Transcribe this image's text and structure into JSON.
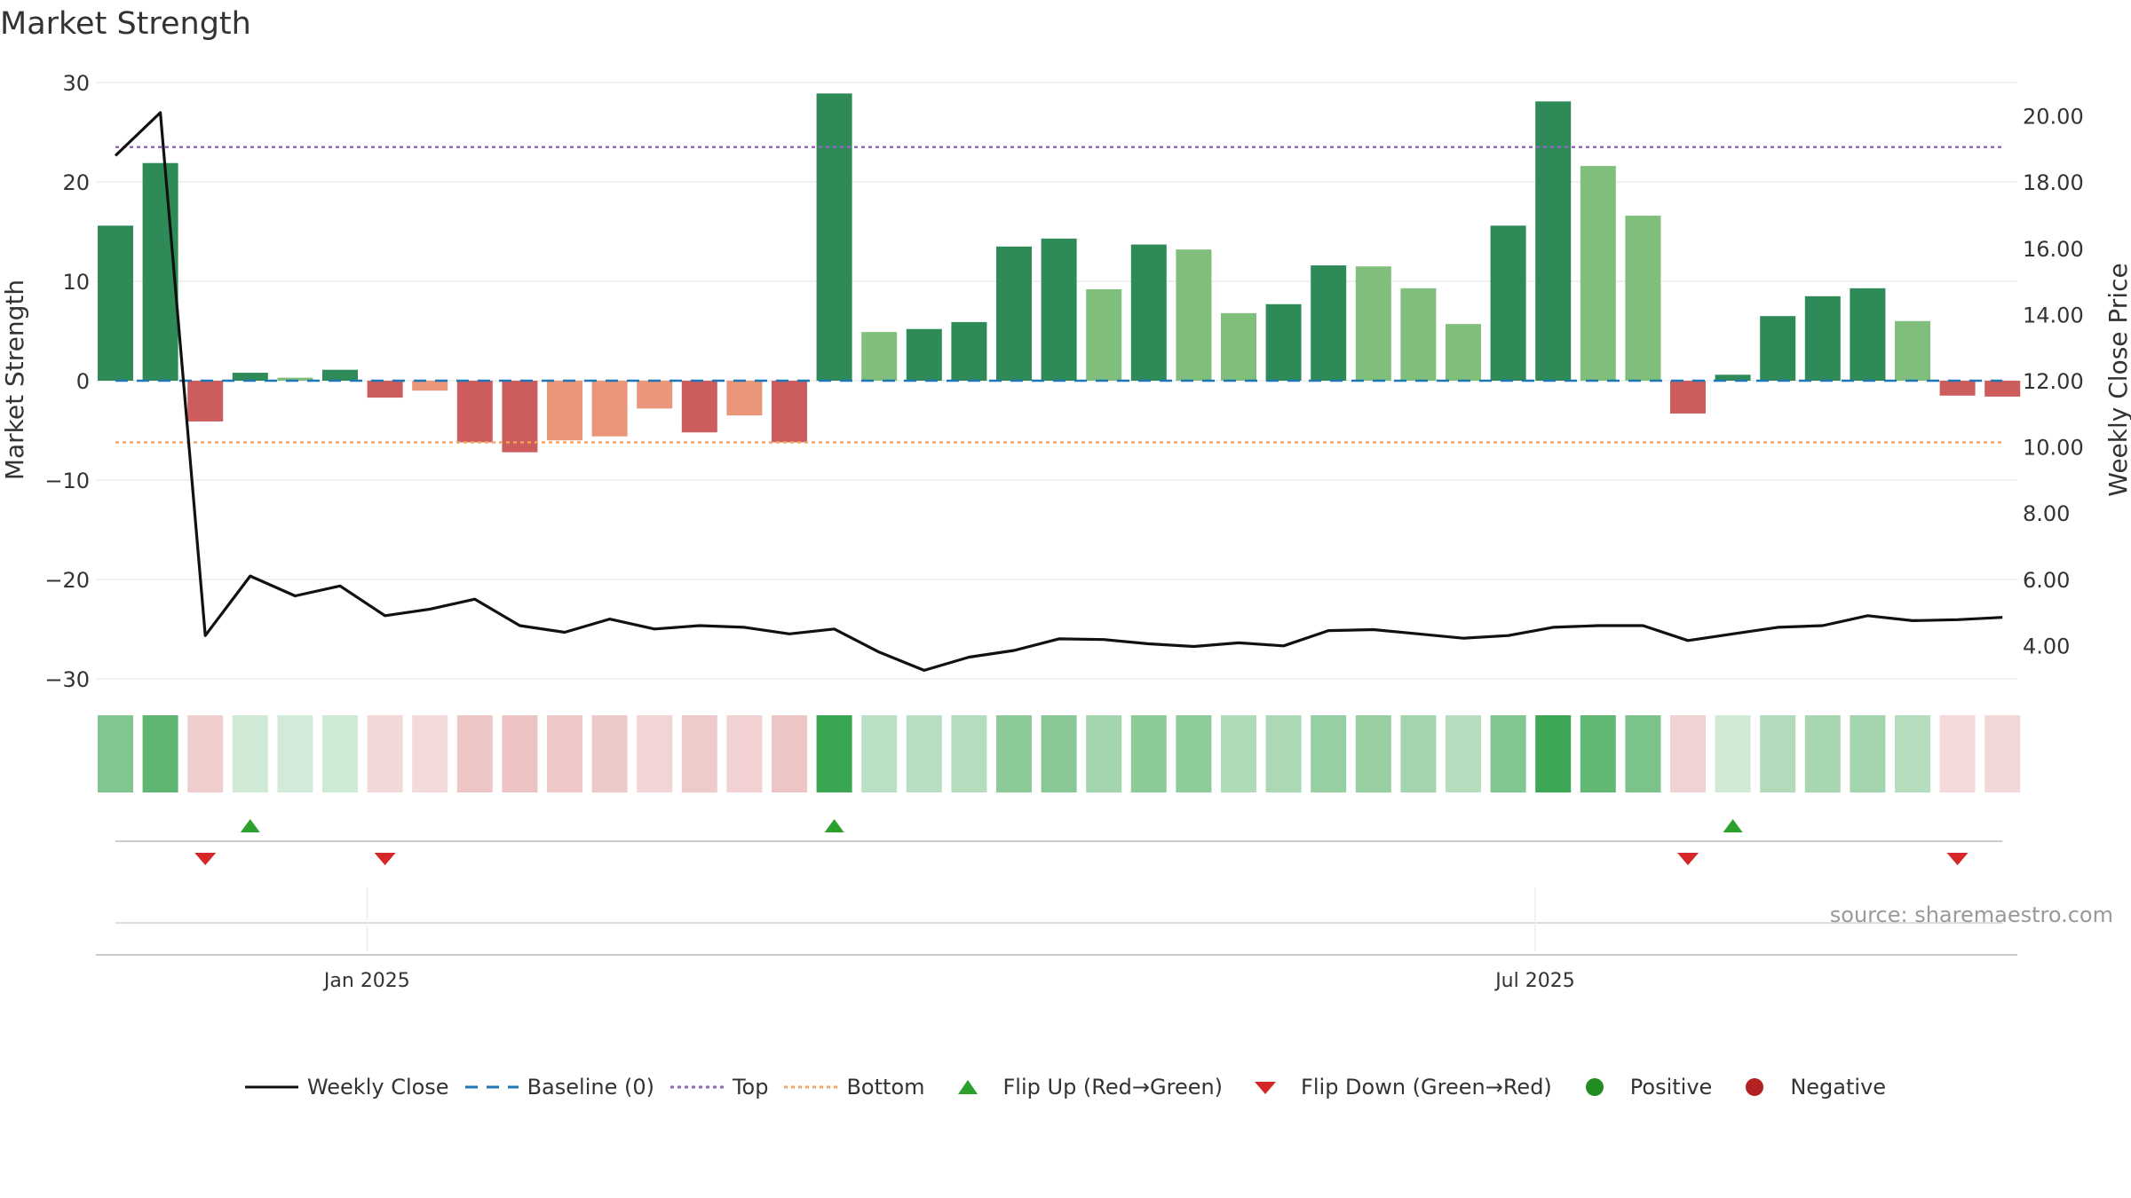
{
  "chart_data": {
    "type": "bar",
    "title": "Market Strength",
    "ylabel_left": "Market Strength",
    "ylabel_right": "Weekly Close Price",
    "source": "source: sharemaestro.com",
    "y_left": {
      "lim": [
        -30,
        30
      ],
      "ticks": [
        30,
        20,
        10,
        0,
        -10,
        -20,
        -30
      ],
      "tick_labels": [
        "30",
        "20",
        "10",
        "0",
        "−10",
        "−20",
        "−30"
      ]
    },
    "y_right": {
      "lim": [
        2.0,
        21.0
      ],
      "ticks": [
        20,
        18,
        16,
        14,
        12,
        10,
        8,
        6,
        4
      ],
      "tick_labels": [
        "20.00",
        "18.00",
        "16.00",
        "14.00",
        "12.00",
        "10.00",
        "8.00",
        "6.00",
        "4.00"
      ]
    },
    "x_ticks": [
      {
        "label": "Jan 2025",
        "index": 5.6
      },
      {
        "label": "Jul 2025",
        "index": 31.6
      }
    ],
    "baseline": 0,
    "top_line": 23.5,
    "bottom_line": -6.2,
    "strength": [
      15.6,
      21.9,
      -4.1,
      0.8,
      0.3,
      1.1,
      -1.7,
      -1.0,
      -6.2,
      -7.2,
      -6.0,
      -5.6,
      -2.8,
      -5.2,
      -3.5,
      -6.2,
      28.9,
      4.9,
      5.2,
      5.9,
      13.5,
      14.3,
      9.2,
      13.7,
      13.2,
      6.8,
      7.7,
      11.6,
      11.5,
      9.3,
      5.7,
      15.6,
      28.1,
      21.6,
      16.6,
      -3.3,
      0.6,
      6.5,
      8.5,
      9.3,
      6.0,
      -1.5,
      -1.6
    ],
    "strength_shade": [
      "dark",
      "dark",
      "dark",
      "dark",
      "light",
      "dark",
      "dark",
      "light",
      "dark",
      "dark",
      "light",
      "light",
      "light",
      "dark",
      "light",
      "dark",
      "dark",
      "light",
      "dark",
      "dark",
      "dark",
      "dark",
      "light",
      "dark",
      "light",
      "light",
      "dark",
      "dark",
      "light",
      "light",
      "light",
      "dark",
      "dark",
      "light",
      "light",
      "dark",
      "dark",
      "dark",
      "dark",
      "dark",
      "light",
      "dark",
      "dark"
    ],
    "weekly_close": [
      18.8,
      20.1,
      4.3,
      6.1,
      5.5,
      5.8,
      4.9,
      5.1,
      5.4,
      4.6,
      4.4,
      4.8,
      4.5,
      4.6,
      4.55,
      4.35,
      4.5,
      3.8,
      3.25,
      3.65,
      3.85,
      4.2,
      4.18,
      4.05,
      3.97,
      4.08,
      3.99,
      4.45,
      4.48,
      4.35,
      4.22,
      4.3,
      4.55,
      4.6,
      4.6,
      4.15,
      4.35,
      4.55,
      4.6,
      4.9,
      4.75,
      4.78,
      4.85
    ],
    "flips": [
      {
        "index": 2,
        "dir": "down"
      },
      {
        "index": 3,
        "dir": "up"
      },
      {
        "index": 6,
        "dir": "down"
      },
      {
        "index": 16,
        "dir": "up"
      },
      {
        "index": 35,
        "dir": "down"
      },
      {
        "index": 36,
        "dir": "up"
      },
      {
        "index": 41,
        "dir": "down"
      }
    ],
    "colors": {
      "pos_dark": "#2e8b57",
      "pos_light": "#7fbf7b",
      "neg_dark": "#cd5c5c",
      "neg_light": "#e9967a",
      "line": "#111111",
      "baseline": "#1f77b4",
      "top": "#9467bd",
      "bottom": "#f4a460",
      "flip_up": "#2ca02c",
      "flip_down": "#d62728",
      "positive_dot": "#228b22",
      "negative_dot": "#b22222"
    },
    "legend": [
      {
        "label": "Weekly Close",
        "kind": "line",
        "color": "#111111"
      },
      {
        "label": "Baseline (0)",
        "kind": "dashed",
        "color": "#1f77b4"
      },
      {
        "label": "Top",
        "kind": "dotted",
        "color": "#9467bd"
      },
      {
        "label": "Bottom",
        "kind": "dotted",
        "color": "#f4a460"
      },
      {
        "label": "Flip Up (Red→Green)",
        "kind": "tri-up",
        "color": "#2ca02c"
      },
      {
        "label": "Flip Down (Green→Red)",
        "kind": "tri-down",
        "color": "#d62728"
      },
      {
        "label": "Positive",
        "kind": "dot",
        "color": "#228b22"
      },
      {
        "label": "Negative",
        "kind": "dot",
        "color": "#b22222"
      }
    ]
  }
}
